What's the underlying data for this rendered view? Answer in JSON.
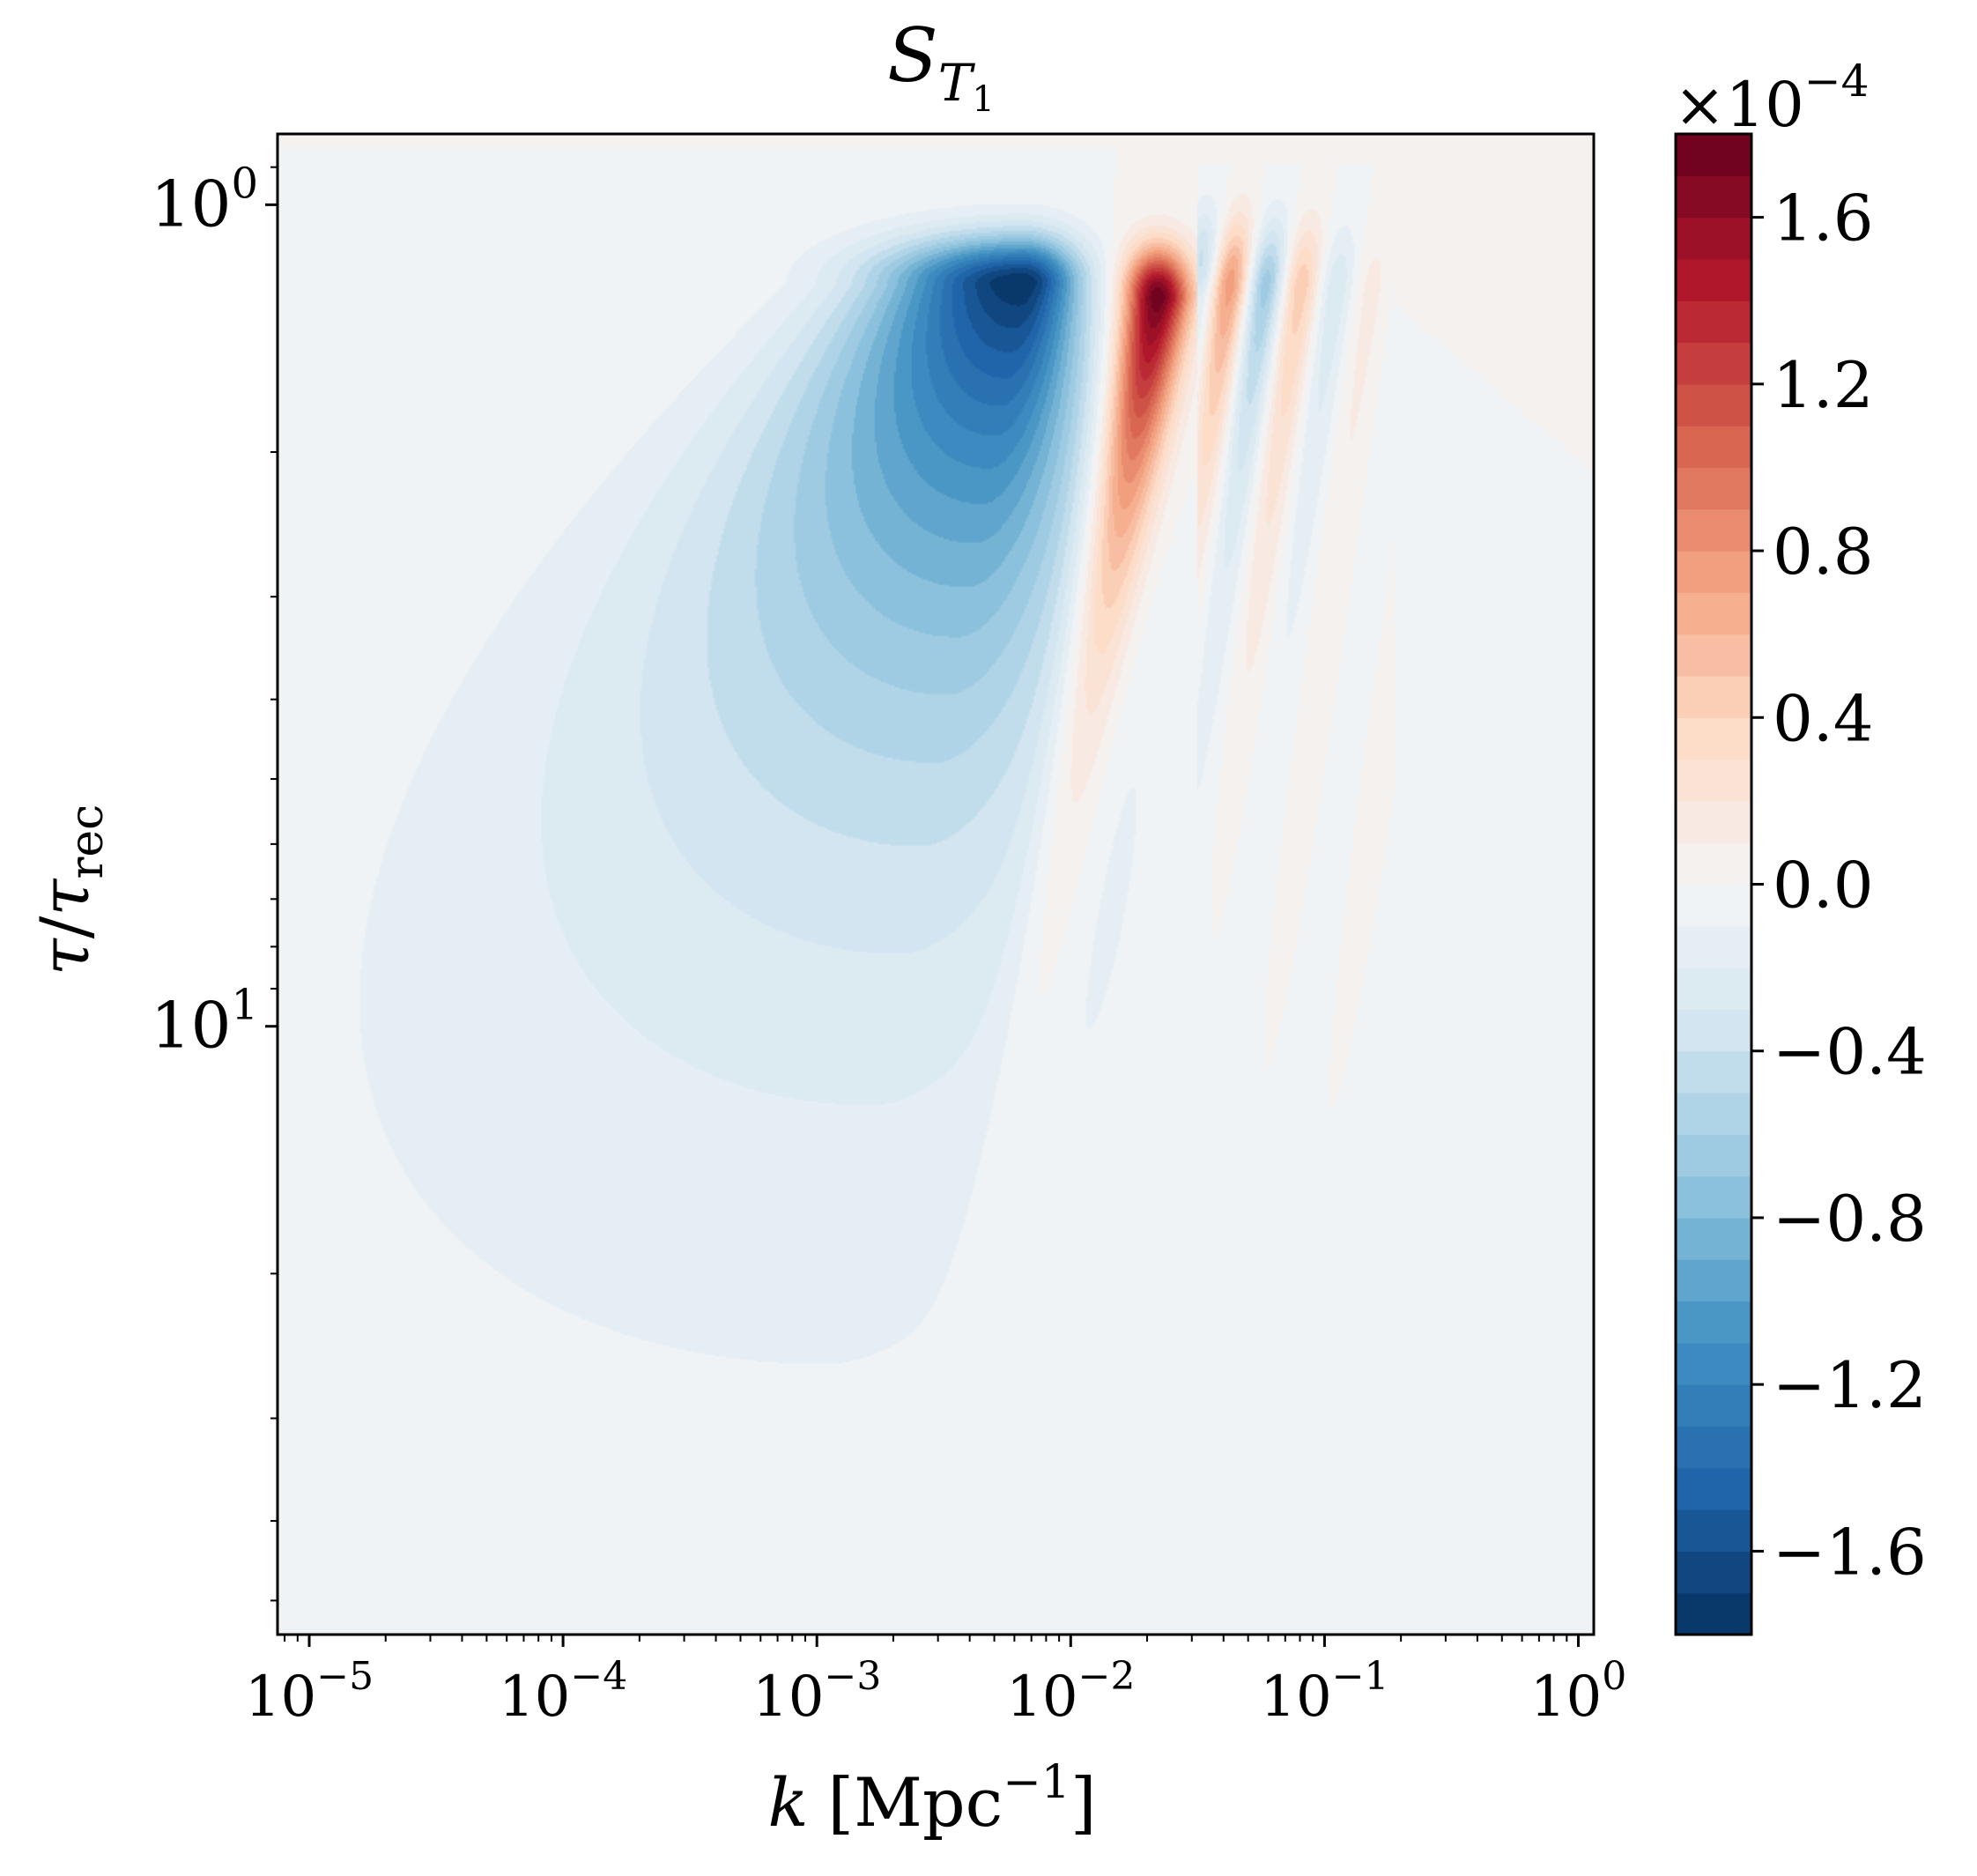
{
  "chart_data": {
    "type": "heatmap",
    "title": {
      "base": "S",
      "sub": "T",
      "subsub": "1"
    },
    "xlabel": {
      "var": "k",
      "unit_base": "Mpc",
      "unit_exp": "−1"
    },
    "ylabel": {
      "num": "τ",
      "den": "τ",
      "den_sub": "rec"
    },
    "x_scale": "log",
    "y_scale": "log",
    "y_inverted": true,
    "xlim": [
      7.5e-06,
      1.15
    ],
    "ylim": [
      0.82,
      55
    ],
    "x_ticks": [
      {
        "value": 1e-05,
        "base": "10",
        "exp": "−5"
      },
      {
        "value": 0.0001,
        "base": "10",
        "exp": "−4"
      },
      {
        "value": 0.001,
        "base": "10",
        "exp": "−3"
      },
      {
        "value": 0.01,
        "base": "10",
        "exp": "−2"
      },
      {
        "value": 0.1,
        "base": "10",
        "exp": "−1"
      },
      {
        "value": 1,
        "base": "10",
        "exp": "0"
      }
    ],
    "y_ticks": [
      {
        "value": 1,
        "base": "10",
        "exp": "0"
      },
      {
        "value": 10,
        "base": "10",
        "exp": "1"
      }
    ],
    "colormap": "RdBu_r",
    "colorbar": {
      "multiplier": {
        "times": "×",
        "base": "10",
        "exp": "−4"
      },
      "vmin": -1.8,
      "vmax": 1.8,
      "levels": 36,
      "ticks": [
        {
          "value": 1.6,
          "label": "1.6"
        },
        {
          "value": 1.2,
          "label": "1.2"
        },
        {
          "value": 0.8,
          "label": "0.8"
        },
        {
          "value": 0.4,
          "label": "0.4"
        },
        {
          "value": 0.0,
          "label": "0.0"
        },
        {
          "value": -0.4,
          "label": "−0.4"
        },
        {
          "value": -0.8,
          "label": "−0.8"
        },
        {
          "value": -1.2,
          "label": "−1.2"
        },
        {
          "value": -1.6,
          "label": "−1.6"
        }
      ]
    },
    "field_features": [
      {
        "type": "negative_lobe",
        "k_peak": 0.0065,
        "tau_peak": 1.25,
        "value_peak": -1.8
      },
      {
        "type": "positive_lobe",
        "k_peak": 0.022,
        "tau_peak": 1.3,
        "value_peak": 1.8
      },
      {
        "type": "weak_oscillations",
        "k_range": [
          0.04,
          0.15
        ],
        "tau_range": [
          1.1,
          2.5
        ],
        "amplitude": 0.25
      }
    ],
    "grid": false,
    "legend": "none"
  }
}
